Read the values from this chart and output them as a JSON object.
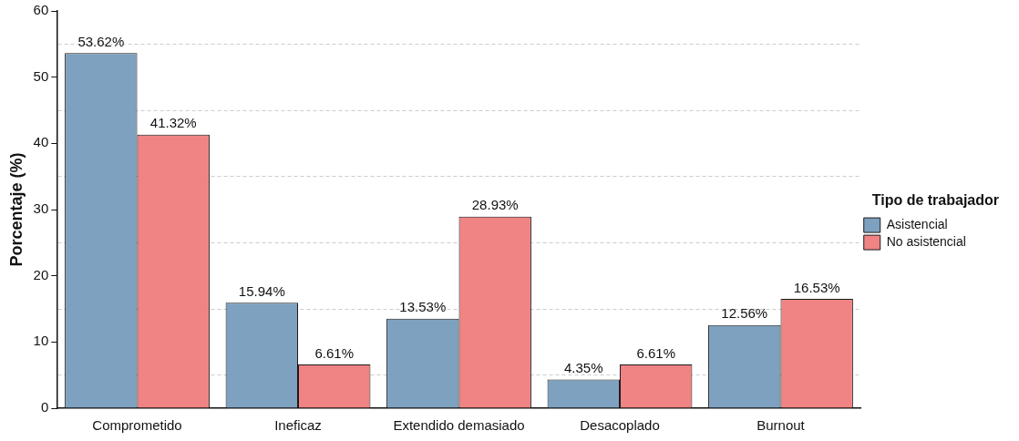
{
  "chart_data": {
    "type": "bar",
    "ylabel": "Porcentaje (%)",
    "legend_title": "Tipo de trabajador",
    "legend": "right",
    "categories": [
      "Comprometido",
      "Ineficaz",
      "Extendido demasiado",
      "Desacoplado",
      "Burnout"
    ],
    "series": [
      {
        "name": "Asistencial",
        "color": "#7ea1bf",
        "values": [
          53.62,
          15.94,
          13.53,
          4.35,
          12.56
        ],
        "value_labels": [
          "53.62%",
          "15.94%",
          "13.53%",
          "4.35%",
          "12.56%"
        ]
      },
      {
        "name": "No asistencial",
        "color": "#f08383",
        "values": [
          41.32,
          6.61,
          28.93,
          6.61,
          16.53
        ],
        "value_labels": [
          "41.32%",
          "6.61%",
          "28.93%",
          "6.61%",
          "16.53%"
        ]
      }
    ],
    "ylim": [
      0,
      60
    ],
    "yticks": [
      0,
      {
        "value": 5,
        "label": null
      },
      10,
      {
        "value": 15,
        "label": null
      },
      20,
      {
        "value": 25,
        "label": null
      },
      30,
      {
        "value": 35,
        "label": null
      },
      40,
      {
        "value": 45,
        "label": null
      },
      50,
      {
        "value": 55,
        "label": null
      },
      60
    ],
    "grid": "y"
  }
}
